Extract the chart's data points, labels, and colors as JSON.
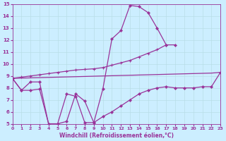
{
  "xlabel": "Windchill (Refroidissement éolien,°C)",
  "background_color": "#cceeff",
  "grid_color": "#b8dde8",
  "line_color": "#993399",
  "xlim": [
    0,
    23
  ],
  "ylim": [
    5,
    15
  ],
  "xticks": [
    0,
    1,
    2,
    3,
    4,
    5,
    6,
    7,
    8,
    9,
    10,
    11,
    12,
    13,
    14,
    15,
    16,
    17,
    18,
    19,
    20,
    21,
    22,
    23
  ],
  "yticks": [
    5,
    6,
    7,
    8,
    9,
    10,
    11,
    12,
    13,
    14,
    15
  ],
  "line1_x": [
    0,
    1,
    2,
    3,
    4,
    5,
    6,
    7,
    8,
    9,
    10,
    11,
    12,
    13,
    14,
    15,
    16,
    17,
    18
  ],
  "line1_y": [
    8.8,
    7.8,
    8.5,
    8.5,
    5.0,
    5.0,
    5.2,
    7.5,
    6.9,
    5.1,
    7.9,
    12.1,
    12.8,
    14.9,
    14.8,
    14.3,
    13.0,
    11.6,
    11.6
  ],
  "line2_x": [
    0,
    1,
    2,
    3,
    4,
    5,
    6,
    7,
    8,
    9,
    10,
    11,
    12,
    13,
    14,
    15,
    16,
    17
  ],
  "line2_y": [
    8.8,
    8.9,
    9.0,
    9.1,
    9.2,
    9.3,
    9.4,
    9.5,
    9.55,
    9.6,
    9.7,
    9.9,
    10.1,
    10.3,
    10.6,
    10.9,
    11.2,
    11.6
  ],
  "line3_x": [
    0,
    1,
    2,
    3,
    4,
    5,
    6,
    7,
    8,
    9,
    10,
    11,
    12,
    13,
    14,
    15,
    16,
    17,
    18,
    19,
    20,
    21,
    22,
    23
  ],
  "line3_y": [
    8.8,
    8.82,
    8.84,
    8.86,
    8.88,
    8.9,
    8.92,
    8.94,
    8.96,
    8.98,
    9.0,
    9.02,
    9.04,
    9.06,
    9.08,
    9.1,
    9.12,
    9.14,
    9.16,
    9.18,
    9.2,
    9.22,
    9.24,
    9.3
  ],
  "line4_x": [
    0,
    1,
    2,
    3,
    4,
    5,
    6,
    7,
    8,
    9,
    10,
    11,
    12,
    13,
    14,
    15,
    16,
    17,
    18,
    19,
    20,
    21,
    22,
    23
  ],
  "line4_y": [
    8.8,
    7.8,
    7.8,
    7.9,
    5.0,
    5.0,
    7.5,
    7.3,
    5.1,
    5.1,
    5.6,
    6.0,
    6.5,
    7.0,
    7.5,
    7.8,
    8.0,
    8.1,
    8.0,
    8.0,
    8.0,
    8.1,
    8.1,
    9.3
  ]
}
